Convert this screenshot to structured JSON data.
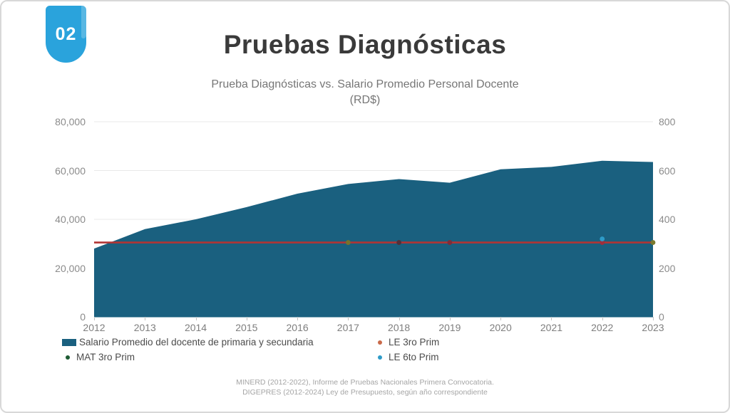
{
  "slide": {
    "badge": "02",
    "title": "Pruebas Diagnósticas",
    "source_lines": [
      "MINERD (2012-2022), Informe de Pruebas Nacionales Primera Convocatoria.",
      "DIGEPRES (2012-2024) Ley de Presupuesto, según año correspondiente"
    ]
  },
  "colors": {
    "badge_blue": "#2AA3DC",
    "area_teal": "#1A607F",
    "line_red": "#B13434",
    "gridline": "#e9e9e9"
  },
  "chart_data": {
    "type": "area",
    "title": "Prueba Diagnósticas vs. Salario Promedio Personal Docente",
    "subtitle": "(RD$)",
    "categories": [
      "2012",
      "2013",
      "2014",
      "2015",
      "2016",
      "2017",
      "2018",
      "2019",
      "2020",
      "2021",
      "2022",
      "2023"
    ],
    "series": [
      {
        "name": "Salario Promedio del docente de primaria y secundaria",
        "type": "area",
        "axis": "left",
        "color": "#1A607F",
        "values": [
          28000,
          36000,
          40000,
          45000,
          50500,
          54500,
          56500,
          55000,
          60500,
          61500,
          64000,
          63500
        ]
      },
      {
        "name": "LE 3ro Prim",
        "type": "line",
        "axis": "right",
        "color": "#B13434",
        "values": [
          305,
          305,
          305,
          305,
          305,
          305,
          305,
          305,
          305,
          305,
          305,
          305
        ]
      }
    ],
    "overlapping_point_markers": [
      {
        "x": "2017",
        "color": "#77722C",
        "dy": 0
      },
      {
        "x": "2018",
        "color": "#50303A",
        "dy": 0
      },
      {
        "x": "2019",
        "color": "#7E2D39",
        "dy": 0
      },
      {
        "x": "2022",
        "color": "#9E2F3C",
        "dy": 0
      },
      {
        "x": "2022",
        "color": "#2E9BC8",
        "dy": -5
      },
      {
        "x": "2023",
        "color": "#7A7A2E",
        "dy": 0
      }
    ],
    "left_axis": {
      "min": 0,
      "max": 80000,
      "tick_values": [
        0,
        20000,
        40000,
        60000,
        80000
      ],
      "tick_labels": [
        "0",
        "20,000",
        "40,000",
        "60,000",
        "80,000"
      ]
    },
    "right_axis": {
      "min": 0,
      "max": 800,
      "tick_values": [
        0,
        200,
        400,
        600,
        800
      ],
      "tick_labels": [
        "0",
        "200",
        "400",
        "600",
        "800"
      ]
    },
    "grid": "horizontal",
    "legend_position": "bottom",
    "legend": [
      {
        "label": "Salario Promedio del docente de primaria y secundaria",
        "swatch": "rect",
        "color": "#1A607F"
      },
      {
        "label": "LE 3ro Prim",
        "swatch": "dot",
        "color": "#C96A4A"
      },
      {
        "label": "MAT 3ro Prim",
        "swatch": "dot",
        "color": "#1E5B33"
      },
      {
        "label": "LE 6to Prim",
        "swatch": "dot",
        "color": "#2E9BC8"
      }
    ]
  }
}
